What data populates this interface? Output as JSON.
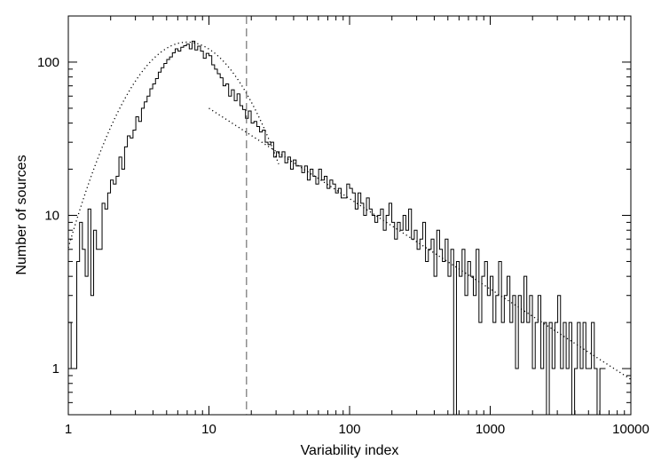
{
  "chart_data": {
    "type": "histogram",
    "xlabel": "Variability index",
    "ylabel": "Number of sources",
    "xscale": "log",
    "yscale": "log",
    "xlim": [
      1,
      10000
    ],
    "ylim": [
      0.5,
      200
    ],
    "x_tick_labels": [
      "1",
      "10",
      "100",
      "1000",
      "10000"
    ],
    "y_tick_labels": [
      "1",
      "10",
      "100"
    ],
    "threshold_line": {
      "x": 18.5,
      "style": "dashed"
    },
    "histogram": {
      "name": "",
      "bin_edges_log10": [
        0.0,
        4.0
      ],
      "bin_width_log10": 0.02,
      "counts": [
        2,
        1,
        1,
        5,
        9,
        6,
        4,
        11,
        3,
        8,
        6,
        6,
        12,
        11,
        14,
        17,
        16,
        18,
        24,
        20,
        28,
        33,
        32,
        36,
        44,
        41,
        50,
        55,
        60,
        67,
        72,
        78,
        86,
        92,
        98,
        104,
        108,
        115,
        122,
        118,
        125,
        128,
        131,
        122,
        137,
        120,
        127,
        118,
        106,
        114,
        110,
        96,
        90,
        84,
        79,
        70,
        72,
        60,
        66,
        56,
        62,
        52,
        49,
        43,
        48,
        40,
        41,
        38,
        35,
        36,
        30,
        29,
        30,
        24,
        26,
        24,
        26,
        22,
        24,
        20,
        23,
        21,
        21,
        19,
        21,
        17,
        20,
        18,
        16,
        20,
        17,
        18,
        15,
        17,
        16,
        14,
        15,
        13,
        13,
        16,
        15,
        14,
        11,
        14,
        12,
        10,
        13,
        11,
        10,
        9,
        10,
        11,
        8,
        10,
        12,
        9,
        7,
        9,
        8,
        10,
        8,
        11,
        7,
        8,
        6,
        7,
        9,
        5,
        6,
        7,
        4,
        8,
        6,
        5,
        7,
        4,
        6,
        0.3,
        5,
        4,
        6,
        3,
        5,
        4,
        3,
        6,
        2,
        4,
        5,
        3,
        4,
        2,
        3,
        5,
        2,
        3,
        4,
        2,
        3,
        1,
        3,
        2,
        4,
        2,
        3,
        1,
        2,
        3,
        1,
        2,
        0.3,
        2,
        1,
        2,
        3,
        1,
        2,
        1,
        2,
        0.3,
        1,
        2,
        1,
        2,
        1,
        1,
        2,
        1,
        0.3,
        1,
        1
      ]
    },
    "series": [
      {
        "type": "dotted_curve",
        "model": "lognormal",
        "peak": 135,
        "peak_x": 7,
        "sigma_log10": 0.34
      },
      {
        "type": "dotted_line",
        "model": "power_law",
        "x_range": [
          10,
          10000
        ],
        "y_at_x_min": 50,
        "y_at_x_max": 0.85
      }
    ]
  }
}
